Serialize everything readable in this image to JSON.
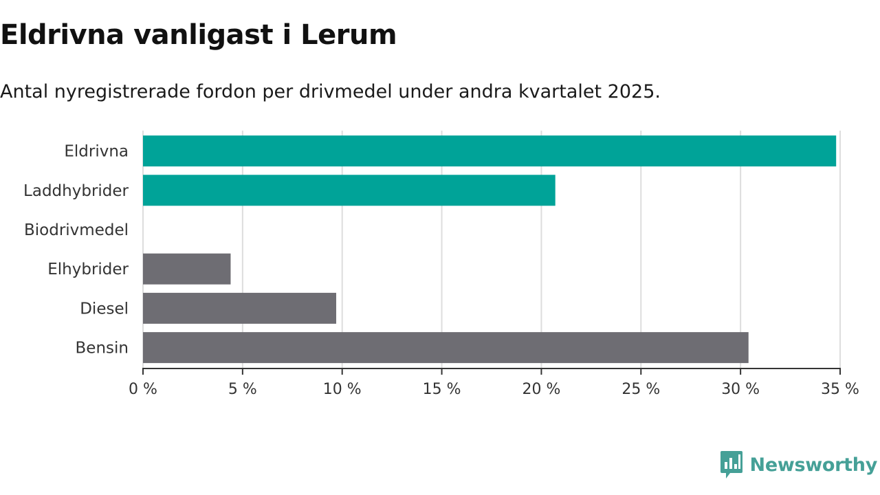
{
  "title": "Eldrivna vanligast i Lerum",
  "subtitle": "Antal nyregistrerade fordon per drivmedel under andra kvartalet 2025.",
  "brand": {
    "name": "Newsworthy",
    "logo_icon": "newsworthy-chart-bubble-icon",
    "color": "#45a097"
  },
  "chart_data": {
    "type": "bar",
    "orientation": "horizontal",
    "categories": [
      "Eldrivna",
      "Laddhybrider",
      "Biodrivmedel",
      "Elhybrider",
      "Diesel",
      "Bensin"
    ],
    "values": [
      34.8,
      20.7,
      0,
      4.4,
      9.7,
      30.4
    ],
    "colors": [
      "#00a398",
      "#00a398",
      "#00a398",
      "#6e6d73",
      "#6e6d73",
      "#6e6d73"
    ],
    "xlim": [
      0,
      35
    ],
    "ticks": [
      {
        "value": 0,
        "label": "0 %"
      },
      {
        "value": 5,
        "label": "5 %"
      },
      {
        "value": 10,
        "label": "10 %"
      },
      {
        "value": 15,
        "label": "15 %"
      },
      {
        "value": 20,
        "label": "20 %"
      },
      {
        "value": 25,
        "label": "25 %"
      },
      {
        "value": 30,
        "label": "30 %"
      },
      {
        "value": 35,
        "label": "35 %"
      }
    ],
    "grid": true,
    "gridColor": "#dddddd",
    "axisColor": "#333333"
  }
}
